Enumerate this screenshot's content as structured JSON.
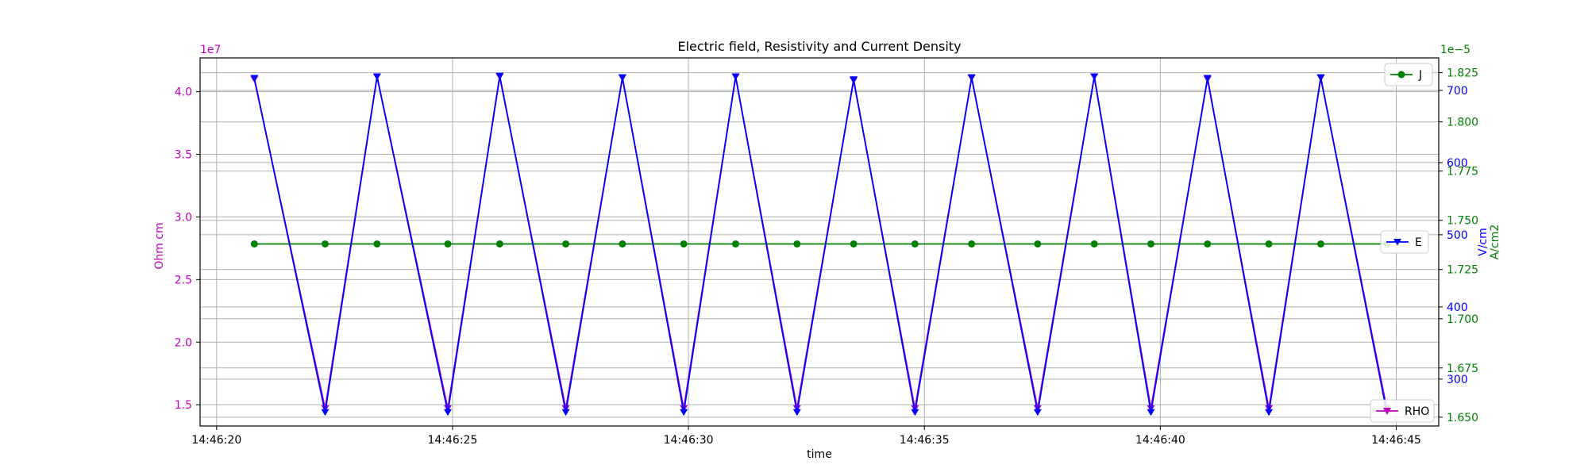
{
  "chart_data": {
    "type": "line",
    "title": "Electric field, Resistivity and Current Density",
    "xlabel": "time",
    "x_ticks": [
      "14:46:20",
      "14:46:25",
      "14:46:30",
      "14:46:35",
      "14:46:40",
      "14:46:45"
    ],
    "x_range_seconds_after_14_46_20": [
      -0.35,
      25.9
    ],
    "grid": true,
    "axes": {
      "rho": {
        "ylabel": "Ohm cm",
        "color": "#bf00bf",
        "offset_label": "1e7",
        "ylim": [
          1.33,
          4.27
        ],
        "ticks": [
          "1.5",
          "2.0",
          "2.5",
          "3.0",
          "3.5",
          "4.0"
        ],
        "tick_values": [
          1.5,
          2.0,
          2.5,
          3.0,
          3.5,
          4.0
        ]
      },
      "e": {
        "ylabel": "V/cm",
        "color": "#0000ff",
        "ylim": [
          235,
          745
        ],
        "ticks": [
          "300",
          "400",
          "500",
          "600",
          "700"
        ],
        "tick_values": [
          300,
          400,
          500,
          600,
          700
        ]
      },
      "j": {
        "ylabel": "A/cm2",
        "color": "#008000",
        "offset_label": "1e−5",
        "ylim": [
          1.6455,
          1.8325
        ],
        "ticks": [
          "1.650",
          "1.675",
          "1.700",
          "1.725",
          "1.750",
          "1.775",
          "1.800",
          "1.825"
        ],
        "tick_values": [
          1.65,
          1.675,
          1.7,
          1.725,
          1.75,
          1.775,
          1.8,
          1.825
        ]
      }
    },
    "series": [
      {
        "name": "RHO",
        "axis": "rho",
        "color": "#bf00bf",
        "marker": "triangle-down",
        "x_seconds": [
          0.8,
          2.3,
          3.4,
          4.9,
          6.0,
          7.4,
          8.6,
          9.9,
          11.0,
          12.3,
          13.5,
          14.8,
          16.0,
          17.4,
          18.6,
          19.8,
          21.0,
          22.3,
          23.4,
          24.8
        ],
        "values": [
          4.1,
          1.47,
          4.12,
          1.47,
          4.12,
          1.47,
          4.11,
          1.47,
          4.12,
          1.47,
          4.09,
          1.47,
          4.11,
          1.47,
          4.12,
          1.47,
          4.1,
          1.47,
          4.11,
          1.47
        ]
      },
      {
        "name": "E",
        "axis": "e",
        "color": "#0000ff",
        "marker": "triangle-down",
        "x_seconds": [
          0.8,
          2.3,
          3.4,
          4.9,
          6.0,
          7.4,
          8.6,
          9.9,
          11.0,
          12.3,
          13.5,
          14.8,
          16.0,
          17.4,
          18.6,
          19.8,
          21.0,
          22.3,
          23.4,
          24.8
        ],
        "values": [
          717,
          254,
          719,
          254,
          720,
          254,
          718,
          254,
          719,
          254,
          715,
          254,
          718,
          254,
          719,
          254,
          717,
          254,
          718,
          254
        ]
      },
      {
        "name": "J",
        "axis": "j",
        "color": "#008000",
        "marker": "circle",
        "x_seconds": [
          0.8,
          2.3,
          3.4,
          4.9,
          6.0,
          7.4,
          8.6,
          9.9,
          11.0,
          12.3,
          13.5,
          14.8,
          16.0,
          17.4,
          18.6,
          19.8,
          21.0,
          22.3,
          23.4,
          24.8
        ],
        "values": [
          1.738,
          1.738,
          1.738,
          1.738,
          1.738,
          1.738,
          1.738,
          1.738,
          1.738,
          1.738,
          1.738,
          1.738,
          1.738,
          1.738,
          1.738,
          1.738,
          1.738,
          1.738,
          1.738,
          1.738
        ]
      }
    ],
    "legends": [
      {
        "name": "J",
        "placement": "upper-right"
      },
      {
        "name": "E",
        "placement": "center-right"
      },
      {
        "name": "RHO",
        "placement": "lower-right"
      }
    ]
  }
}
